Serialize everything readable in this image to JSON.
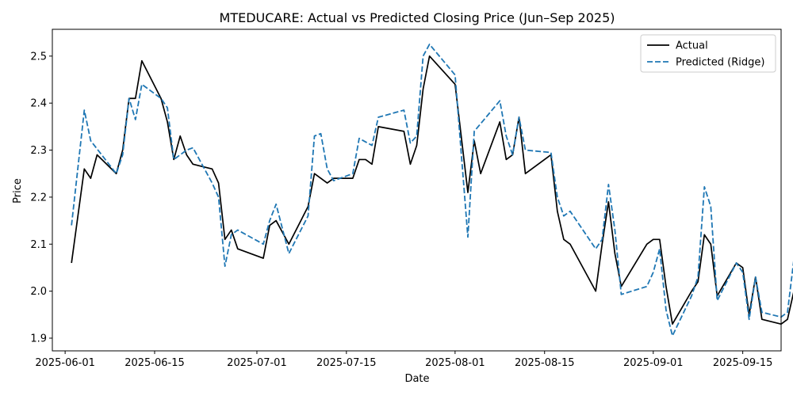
{
  "chart_data": {
    "type": "line",
    "title": "MTEDUCARE: Actual vs Predicted Closing Price (Jun–Sep 2025)",
    "xlabel": "Date",
    "ylabel": "Price",
    "x_type": "date",
    "xlim": [
      "2025-05-30",
      "2025-09-21"
    ],
    "ylim": [
      1.873,
      2.557
    ],
    "x_ticks": [
      "2025-06-01",
      "2025-06-15",
      "2025-07-01",
      "2025-07-15",
      "2025-08-01",
      "2025-08-15",
      "2025-09-01",
      "2025-09-15"
    ],
    "y_ticks": [
      "1.9",
      "2.0",
      "2.1",
      "2.2",
      "2.3",
      "2.4",
      "2.5"
    ],
    "grid": false,
    "legend_position": "top-right",
    "series": [
      {
        "name": "Actual",
        "color": "#000000",
        "style": "solid",
        "points": [
          [
            "2025-06-02",
            2.06
          ],
          [
            "2025-06-04",
            2.26
          ],
          [
            "2025-06-05",
            2.24
          ],
          [
            "2025-06-06",
            2.29
          ],
          [
            "2025-06-09",
            2.25
          ],
          [
            "2025-06-10",
            2.3
          ],
          [
            "2025-06-11",
            2.41
          ],
          [
            "2025-06-12",
            2.41
          ],
          [
            "2025-06-13",
            2.49
          ],
          [
            "2025-06-16",
            2.41
          ],
          [
            "2025-06-17",
            2.36
          ],
          [
            "2025-06-18",
            2.28
          ],
          [
            "2025-06-19",
            2.33
          ],
          [
            "2025-06-20",
            2.29
          ],
          [
            "2025-06-21",
            2.27
          ],
          [
            "2025-06-24",
            2.26
          ],
          [
            "2025-06-25",
            2.23
          ],
          [
            "2025-06-26",
            2.11
          ],
          [
            "2025-06-27",
            2.13
          ],
          [
            "2025-06-28",
            2.09
          ],
          [
            "2025-07-02",
            2.07
          ],
          [
            "2025-07-03",
            2.14
          ],
          [
            "2025-07-04",
            2.15
          ],
          [
            "2025-07-06",
            2.1
          ],
          [
            "2025-07-09",
            2.18
          ],
          [
            "2025-07-10",
            2.25
          ],
          [
            "2025-07-12",
            2.23
          ],
          [
            "2025-07-13",
            2.24
          ],
          [
            "2025-07-16",
            2.24
          ],
          [
            "2025-07-17",
            2.28
          ],
          [
            "2025-07-18",
            2.28
          ],
          [
            "2025-07-19",
            2.27
          ],
          [
            "2025-07-20",
            2.35
          ],
          [
            "2025-07-24",
            2.34
          ],
          [
            "2025-07-25",
            2.27
          ],
          [
            "2025-07-26",
            2.31
          ],
          [
            "2025-07-27",
            2.43
          ],
          [
            "2025-07-28",
            2.5
          ],
          [
            "2025-08-01",
            2.44
          ],
          [
            "2025-08-03",
            2.21
          ],
          [
            "2025-08-04",
            2.32
          ],
          [
            "2025-08-05",
            2.25
          ],
          [
            "2025-08-08",
            2.36
          ],
          [
            "2025-08-09",
            2.28
          ],
          [
            "2025-08-10",
            2.29
          ],
          [
            "2025-08-11",
            2.37
          ],
          [
            "2025-08-12",
            2.25
          ],
          [
            "2025-08-16",
            2.29
          ],
          [
            "2025-08-17",
            2.17
          ],
          [
            "2025-08-18",
            2.11
          ],
          [
            "2025-08-19",
            2.1
          ],
          [
            "2025-08-23",
            2.0
          ],
          [
            "2025-08-24",
            2.1
          ],
          [
            "2025-08-25",
            2.19
          ],
          [
            "2025-08-26",
            2.08
          ],
          [
            "2025-08-27",
            2.01
          ],
          [
            "2025-08-31",
            2.1
          ],
          [
            "2025-09-01",
            2.11
          ],
          [
            "2025-09-02",
            2.11
          ],
          [
            "2025-09-03",
            2.01
          ],
          [
            "2025-09-04",
            1.93
          ],
          [
            "2025-09-07",
            2.0
          ],
          [
            "2025-09-08",
            2.02
          ],
          [
            "2025-09-09",
            2.12
          ],
          [
            "2025-09-10",
            2.1
          ],
          [
            "2025-09-11",
            1.99
          ],
          [
            "2025-09-14",
            2.06
          ],
          [
            "2025-09-15",
            2.05
          ],
          [
            "2025-09-16",
            1.95
          ],
          [
            "2025-09-17",
            2.03
          ],
          [
            "2025-09-18",
            1.94
          ],
          [
            "2025-09-21",
            1.93
          ],
          [
            "2025-09-22",
            1.94
          ],
          [
            "2025-09-23",
            2.0
          ],
          [
            "2025-09-24",
            2.08
          ]
        ]
      },
      {
        "name": "Predicted (Ridge)",
        "color": "#1f77b4",
        "style": "dashed",
        "points": [
          [
            "2025-06-02",
            2.14
          ],
          [
            "2025-06-04",
            2.385
          ],
          [
            "2025-06-05",
            2.32
          ],
          [
            "2025-06-09",
            2.25
          ],
          [
            "2025-06-10",
            2.29
          ],
          [
            "2025-06-11",
            2.41
          ],
          [
            "2025-06-12",
            2.365
          ],
          [
            "2025-06-13",
            2.44
          ],
          [
            "2025-06-16",
            2.41
          ],
          [
            "2025-06-17",
            2.39
          ],
          [
            "2025-06-18",
            2.28
          ],
          [
            "2025-06-20",
            2.3
          ],
          [
            "2025-06-21",
            2.305
          ],
          [
            "2025-06-24",
            2.23
          ],
          [
            "2025-06-25",
            2.2
          ],
          [
            "2025-06-26",
            2.053
          ],
          [
            "2025-06-27",
            2.12
          ],
          [
            "2025-06-28",
            2.13
          ],
          [
            "2025-07-02",
            2.1
          ],
          [
            "2025-07-03",
            2.15
          ],
          [
            "2025-07-04",
            2.185
          ],
          [
            "2025-07-06",
            2.08
          ],
          [
            "2025-07-09",
            2.16
          ],
          [
            "2025-07-10",
            2.33
          ],
          [
            "2025-07-11",
            2.335
          ],
          [
            "2025-07-12",
            2.26
          ],
          [
            "2025-07-13",
            2.235
          ],
          [
            "2025-07-16",
            2.25
          ],
          [
            "2025-07-17",
            2.325
          ],
          [
            "2025-07-19",
            2.31
          ],
          [
            "2025-07-20",
            2.37
          ],
          [
            "2025-07-24",
            2.385
          ],
          [
            "2025-07-25",
            2.315
          ],
          [
            "2025-07-26",
            2.33
          ],
          [
            "2025-07-27",
            2.5
          ],
          [
            "2025-07-28",
            2.525
          ],
          [
            "2025-08-01",
            2.46
          ],
          [
            "2025-08-03",
            2.115
          ],
          [
            "2025-08-04",
            2.34
          ],
          [
            "2025-08-08",
            2.405
          ],
          [
            "2025-08-09",
            2.33
          ],
          [
            "2025-08-10",
            2.29
          ],
          [
            "2025-08-11",
            2.37
          ],
          [
            "2025-08-12",
            2.3
          ],
          [
            "2025-08-16",
            2.295
          ],
          [
            "2025-08-17",
            2.2
          ],
          [
            "2025-08-18",
            2.16
          ],
          [
            "2025-08-19",
            2.17
          ],
          [
            "2025-08-23",
            2.09
          ],
          [
            "2025-08-24",
            2.11
          ],
          [
            "2025-08-25",
            2.227
          ],
          [
            "2025-08-26",
            2.13
          ],
          [
            "2025-08-27",
            1.993
          ],
          [
            "2025-08-31",
            2.01
          ],
          [
            "2025-09-01",
            2.04
          ],
          [
            "2025-09-02",
            2.09
          ],
          [
            "2025-09-03",
            1.96
          ],
          [
            "2025-09-04",
            1.905
          ],
          [
            "2025-09-07",
            1.99
          ],
          [
            "2025-09-08",
            2.03
          ],
          [
            "2025-09-09",
            2.222
          ],
          [
            "2025-09-10",
            2.18
          ],
          [
            "2025-09-11",
            1.98
          ],
          [
            "2025-09-14",
            2.06
          ],
          [
            "2025-09-15",
            2.04
          ],
          [
            "2025-09-16",
            1.94
          ],
          [
            "2025-09-17",
            2.03
          ],
          [
            "2025-09-18",
            1.955
          ],
          [
            "2025-09-21",
            1.945
          ],
          [
            "2025-09-22",
            1.955
          ],
          [
            "2025-09-24",
            2.18
          ]
        ]
      }
    ]
  }
}
